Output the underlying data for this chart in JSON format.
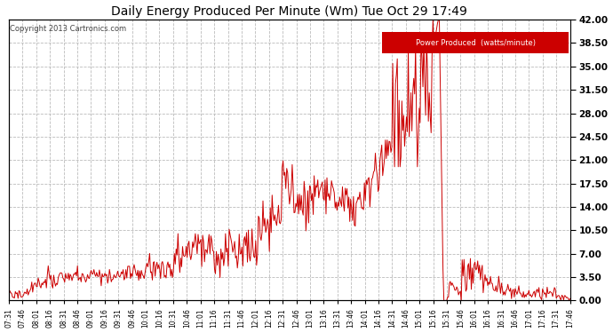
{
  "title": "Daily Energy Produced Per Minute (Wm) Tue Oct 29 17:49",
  "copyright": "Copyright 2013 Cartronics.com",
  "legend_label": "Power Produced  (watts/minute)",
  "legend_bg": "#cc0000",
  "legend_text_color": "#ffffff",
  "line_color": "#cc0000",
  "bg_color": "#ffffff",
  "grid_color": "#bbbbbb",
  "title_color": "#000000",
  "ylim": [
    0,
    42
  ],
  "yticks": [
    0.0,
    3.5,
    7.0,
    10.5,
    14.0,
    17.5,
    21.0,
    24.5,
    28.0,
    31.5,
    35.0,
    38.5,
    42.0
  ],
  "xtick_labels": [
    "07:31",
    "07:46",
    "08:01",
    "08:16",
    "08:31",
    "08:46",
    "09:01",
    "09:16",
    "09:31",
    "09:46",
    "10:01",
    "10:16",
    "10:31",
    "10:46",
    "11:01",
    "11:16",
    "11:31",
    "11:46",
    "12:01",
    "12:16",
    "12:31",
    "12:46",
    "13:01",
    "13:16",
    "13:31",
    "13:46",
    "14:01",
    "14:16",
    "14:31",
    "14:46",
    "15:01",
    "15:16",
    "15:31",
    "15:46",
    "16:01",
    "16:16",
    "16:31",
    "16:46",
    "17:01",
    "17:16",
    "17:31",
    "17:46"
  ],
  "n_points": 615
}
